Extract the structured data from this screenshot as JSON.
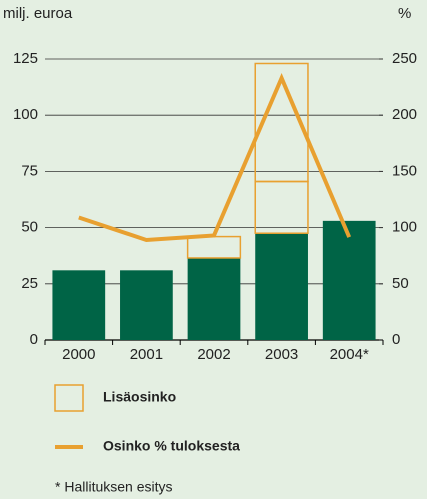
{
  "chart_data": {
    "type": "bar",
    "y_label": "milj. euroa",
    "y2_label": "%",
    "categories": [
      "2000",
      "2001",
      "2002",
      "2003",
      "2004*"
    ],
    "series": [
      {
        "color": "#006446",
        "values": [
          31,
          31,
          36.5,
          47.5,
          53
        ]
      },
      {
        "name": "Lisäosinko",
        "color": "#e8a030",
        "fill": "none",
        "values": [
          null,
          null,
          9.5,
          23,
          null
        ]
      },
      {
        "color": "#e8a030",
        "fill": "none",
        "values": [
          null,
          null,
          null,
          52.5,
          null
        ]
      },
      {
        "name": "Osinko % tuloksesta",
        "type": "line",
        "axis": "y2",
        "color": "#e8a030",
        "values": [
          109,
          89,
          93,
          233,
          91.5
        ]
      }
    ],
    "ylim": [
      0,
      125
    ],
    "yticks": [
      0,
      25,
      50,
      75,
      100,
      125
    ],
    "y2lim": [
      0,
      250
    ],
    "y2ticks": [
      0,
      50,
      100,
      150,
      200,
      250
    ],
    "grid": true,
    "footnote": "* Hallituksen esitys"
  }
}
